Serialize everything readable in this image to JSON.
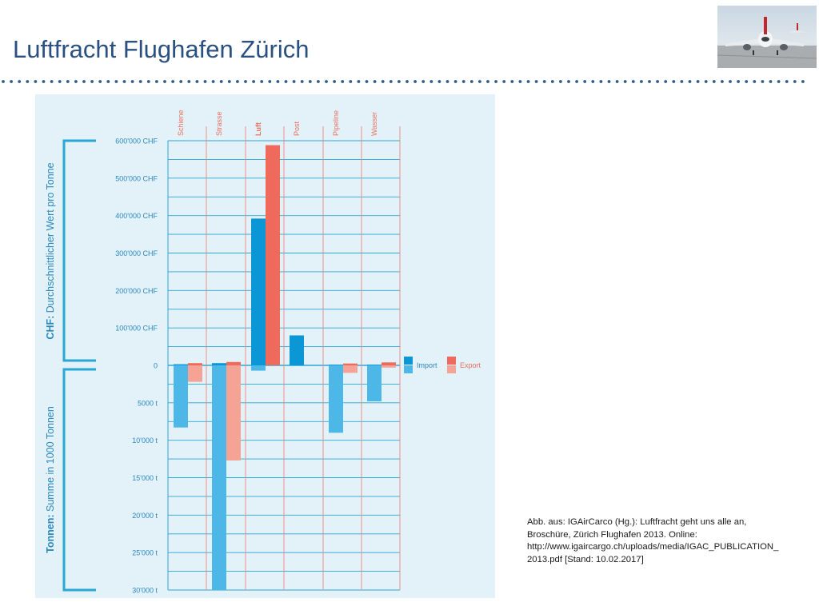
{
  "slide": {
    "title": "Luftfracht Flughafen Zürich",
    "caption_lines": [
      "Abb. aus: IGAirCarco (Hg.): Luftfracht geht uns alle an,",
      "Broschüre, Zürich Flughafen 2013. Online:",
      "http://www.igaircargo.ch/uploads/media/IGAC_PUBLICATION_",
      "2013.pdf  [Stand: 10.02.2017]"
    ],
    "photo_icon": "airplane-runway-photo"
  },
  "colors": {
    "title": "#2a5082",
    "dots": "#2f5c8a",
    "panel_bg": "#e3f1f8",
    "grid": "#29a7d6",
    "separator": "#ec8a7c",
    "category_label": "#e8705f",
    "axis_text": "#2a88bd",
    "side_label": "#2a88bd",
    "import_value": "#0b96d6",
    "export_value": "#ef6a5c",
    "import_tonnes": "#4db8e8",
    "export_tonnes": "#f5a394"
  },
  "chart_data": {
    "type": "bar",
    "categories": [
      "Schiene",
      "Strasse",
      "Luft",
      "Post",
      "Pipeline",
      "Wasser"
    ],
    "highlight_category": "Luft",
    "value_axis": {
      "label_bold": "CHF:",
      "label_rest": " Durchschnittlicher Wert pro Tonne",
      "ticks": [
        "0",
        "100'000 CHF",
        "200'000 CHF",
        "300'000 CHF",
        "400'000 CHF",
        "500'000 CHF",
        "600'000 CHF"
      ],
      "ylim": [
        0,
        600000
      ]
    },
    "tonnage_axis": {
      "label_bold": "Tonnen:",
      "label_rest": " Summe in 1000 Tonnen",
      "ticks": [
        "5000 t",
        "10'000 t",
        "15'000 t",
        "20'000 t",
        "25'000 t",
        "30'000 t"
      ],
      "ylim": [
        0,
        30000
      ]
    },
    "legend": {
      "import": "Import",
      "export": "Export"
    },
    "value_series": [
      {
        "name": "Import",
        "values": [
          3000,
          6000,
          392000,
          80000,
          2000,
          2000
        ]
      },
      {
        "name": "Export",
        "values": [
          6000,
          9000,
          588000,
          0,
          5000,
          8000
        ]
      }
    ],
    "tonnage_series": [
      {
        "name": "Import",
        "values": [
          8300,
          30000,
          700,
          0,
          9000,
          4800
        ]
      },
      {
        "name": "Export",
        "values": [
          2200,
          12700,
          0,
          0,
          1000,
          300
        ]
      }
    ]
  }
}
